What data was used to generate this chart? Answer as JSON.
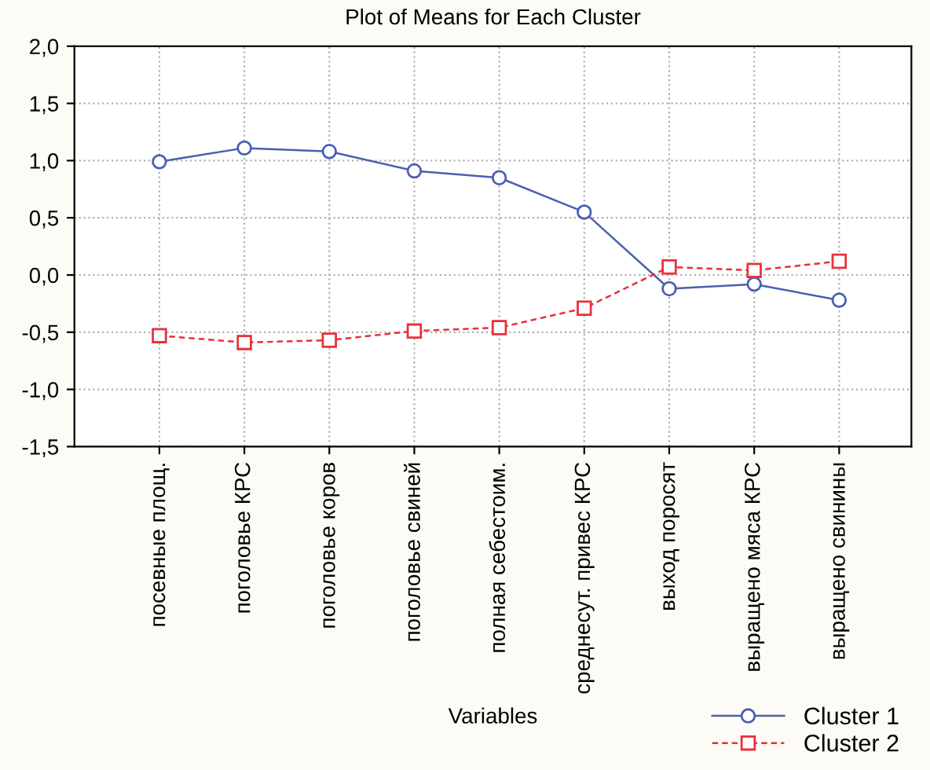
{
  "chart_data": {
    "type": "line",
    "title": "Plot of Means for Each Cluster",
    "xlabel": "Variables",
    "categories": [
      "посевные площ.",
      "поголовье КРС",
      "поголовье коров",
      "поголовье свиней",
      "полная себестоим.",
      "среднесут. привес КРС",
      "выход поросят",
      "выращено мяса КРС",
      "выращено свинины"
    ],
    "series": [
      {
        "name": "Cluster 1",
        "color": "#4a5fb0",
        "marker": "circle",
        "line_style": "solid",
        "values": [
          0.99,
          1.11,
          1.08,
          0.91,
          0.85,
          0.55,
          -0.12,
          -0.08,
          -0.22
        ]
      },
      {
        "name": "Cluster 2",
        "color": "#e8313a",
        "marker": "square",
        "line_style": "dashed",
        "values": [
          -0.53,
          -0.59,
          -0.57,
          -0.49,
          -0.46,
          -0.29,
          0.07,
          0.04,
          0.12
        ]
      }
    ],
    "ylim": [
      -1.5,
      2.0
    ],
    "yticks": [
      {
        "value": -1.5,
        "label": "-1,5"
      },
      {
        "value": -1.0,
        "label": "-1,0"
      },
      {
        "value": -0.5,
        "label": "-0,5"
      },
      {
        "value": 0.0,
        "label": "0,0"
      },
      {
        "value": 0.5,
        "label": "0,5"
      },
      {
        "value": 1.0,
        "label": "1,0"
      },
      {
        "value": 1.5,
        "label": "1,5"
      },
      {
        "value": 2.0,
        "label": "2,0"
      }
    ],
    "grid": true,
    "legend": "bottom right"
  }
}
